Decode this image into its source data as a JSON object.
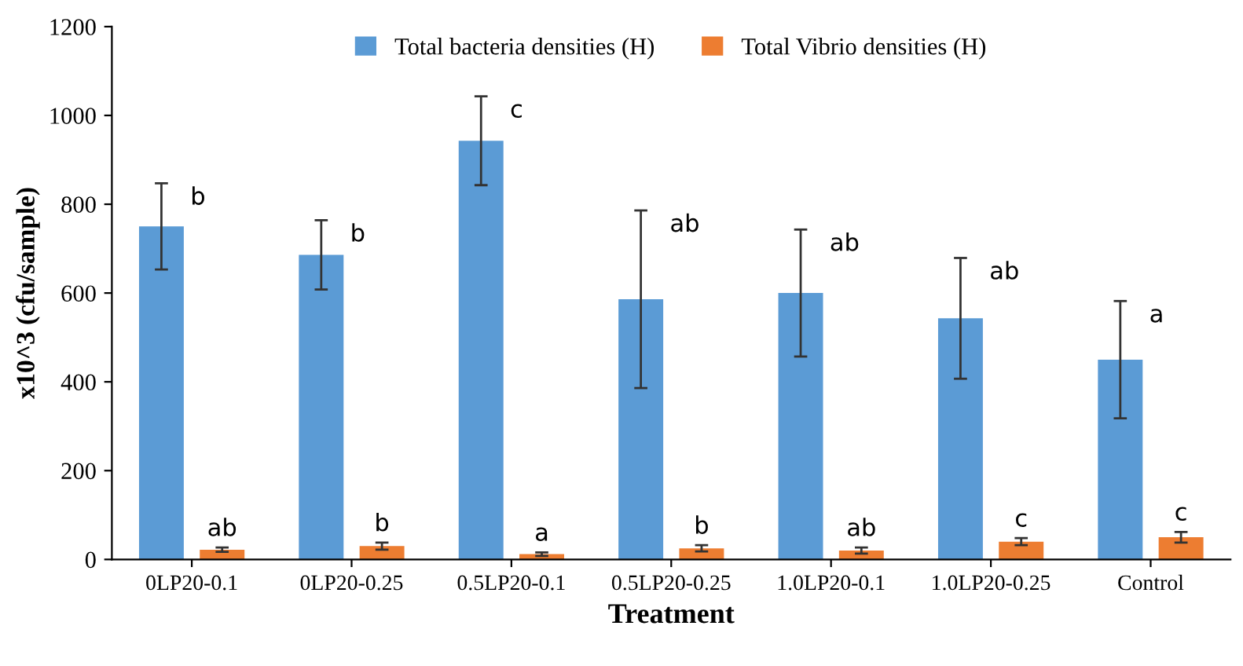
{
  "chart_data": {
    "type": "bar",
    "xlabel": "Treatment",
    "ylabel": "x10^3 (cfu/sample)",
    "categories": [
      "0LP20-0.1",
      "0LP20-0.25",
      "0.5LP20-0.1",
      "0.5LP20-0.25",
      "1.0LP20-0.1",
      "1.0LP20-0.25",
      "Control"
    ],
    "series": [
      {
        "name": "Total bacteria densities (H)",
        "color": "#5b9bd5",
        "values": [
          750,
          686,
          943,
          586,
          600,
          543,
          450
        ],
        "errors": [
          97,
          78,
          100,
          200,
          143,
          136,
          132
        ],
        "value_labels": [
          "b",
          "b",
          "c",
          "ab",
          "ab",
          "ab",
          "a"
        ]
      },
      {
        "name": "Total Vibrio densities (H)",
        "color": "#ed7d31",
        "values": [
          22,
          30,
          12,
          25,
          20,
          40,
          50
        ],
        "errors": [
          5,
          8,
          4,
          7,
          7,
          8,
          12
        ],
        "value_labels": [
          "ab",
          "b",
          "a",
          "b",
          "ab",
          "c",
          "c"
        ]
      }
    ],
    "ylim": [
      0,
      1200
    ],
    "yticks": [
      0,
      200,
      400,
      600,
      800,
      1000,
      1200
    ],
    "grid": false,
    "legend": "top"
  }
}
